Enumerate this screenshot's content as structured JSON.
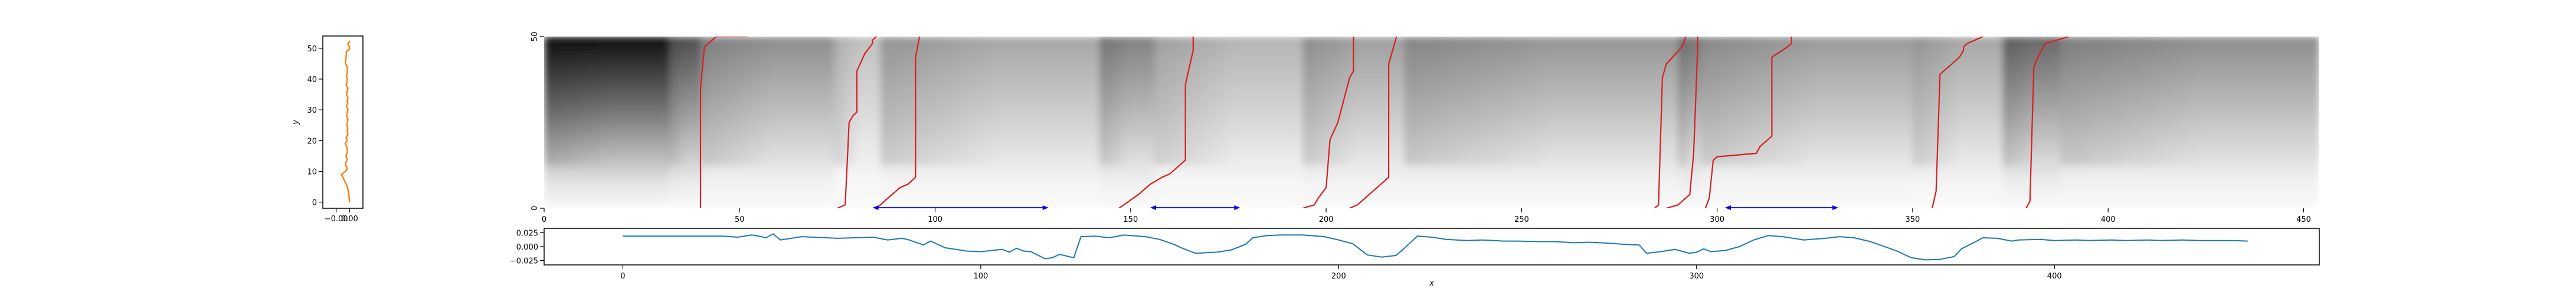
{
  "chart_data": [
    {
      "type": "line",
      "panel": "left-profile",
      "xlabel": "",
      "ylabel": "y",
      "xlim": [
        -0.01,
        0.005
      ],
      "ylim": [
        -2,
        54
      ],
      "xticks": [
        -0.005,
        0.0
      ],
      "xtick_labels": [
        "−0.00",
        "0.00"
      ],
      "yticks": [
        0,
        10,
        20,
        30,
        40,
        50
      ],
      "series": [
        {
          "color": "#ff7f0e",
          "x": [
            0.0,
            -0.0002,
            -0.0008,
            -0.003,
            -0.0015,
            -0.0008,
            -0.0015,
            -0.0013,
            -0.0009,
            -0.0014,
            -0.0009,
            -0.0008,
            -0.0011,
            -0.0016,
            -0.0009,
            -0.0013,
            -0.0006,
            -0.0009,
            -0.0007,
            -0.001,
            -0.0008,
            -0.0006,
            -0.0011,
            -0.0009,
            -0.0006,
            -0.0012,
            -0.0007,
            -0.0009,
            -0.0006,
            -0.0011,
            -0.0009,
            -0.0006,
            -0.0013,
            -0.001,
            -0.0009,
            -0.0012,
            -0.0008,
            -0.0009,
            -0.0009,
            -0.0015,
            -0.0015,
            -0.0013,
            -0.0012,
            -0.0012,
            -0.0003,
            0.0,
            0.0,
            -0.0005,
            -0.0006,
            -0.0001,
            0.0
          ],
          "y": [
            0,
            2,
            5,
            9,
            10,
            11,
            12,
            13,
            14,
            15,
            16,
            17,
            18,
            19,
            20,
            21,
            22,
            23,
            24,
            25,
            26,
            27,
            28,
            29,
            30,
            31,
            32,
            33,
            34,
            35,
            36,
            37,
            38,
            39,
            40,
            41,
            42,
            43,
            44,
            45,
            46,
            47,
            48,
            49,
            49.5,
            50,
            50.5,
            51,
            51.5,
            52,
            52.5
          ]
        }
      ]
    },
    {
      "type": "heatmap",
      "panel": "main-heatmap",
      "colormap": "gray_r",
      "xlim": [
        0,
        454
      ],
      "ylim": [
        0,
        50
      ],
      "xticks": [
        0,
        50,
        100,
        150,
        200,
        250,
        300,
        350,
        400,
        450
      ],
      "yticks": [
        0,
        50
      ],
      "blocks": [
        {
          "x0": 0,
          "x1": 32,
          "peak": 0.95
        },
        {
          "x0": 32,
          "x1": 40,
          "peak": 0.7
        },
        {
          "x0": 40,
          "x1": 74,
          "peak": 0.45
        },
        {
          "x0": 74,
          "x1": 86,
          "peak": 0.25
        },
        {
          "x0": 86,
          "x1": 142,
          "peak": 0.35
        },
        {
          "x0": 142,
          "x1": 156,
          "peak": 0.5
        },
        {
          "x0": 156,
          "x1": 194,
          "peak": 0.3
        },
        {
          "x0": 194,
          "x1": 220,
          "peak": 0.38
        },
        {
          "x0": 220,
          "x1": 290,
          "peak": 0.42
        },
        {
          "x0": 290,
          "x1": 296,
          "peak": 0.55
        },
        {
          "x0": 296,
          "x1": 350,
          "peak": 0.4
        },
        {
          "x0": 350,
          "x1": 373,
          "peak": 0.35
        },
        {
          "x0": 373,
          "x1": 388,
          "peak": 0.6
        },
        {
          "x0": 388,
          "x1": 454,
          "peak": 0.45
        }
      ],
      "red_paths": [
        {
          "x": [
            40,
            40,
            41,
            44,
            52
          ],
          "y": [
            0,
            35,
            47,
            50,
            50
          ]
        },
        {
          "x": [
            75,
            77,
            78,
            79,
            80,
            80,
            82,
            84,
            84,
            85
          ],
          "y": [
            0,
            1,
            25,
            27,
            28,
            40,
            45,
            48,
            49,
            50
          ]
        },
        {
          "x": [
            85,
            88,
            90,
            91,
            93,
            94,
            95,
            95,
            95,
            96
          ],
          "y": [
            0,
            3,
            5,
            6,
            7,
            8,
            9,
            20,
            44,
            50
          ]
        },
        {
          "x": [
            147,
            152,
            155,
            158,
            160,
            162,
            164,
            164,
            166,
            166
          ],
          "y": [
            0,
            4,
            7,
            9,
            10,
            12,
            14,
            36,
            46,
            50
          ]
        },
        {
          "x": [
            194,
            197,
            198,
            200,
            201,
            203,
            206,
            207,
            207
          ],
          "y": [
            0,
            1,
            3,
            6,
            20,
            25,
            38,
            40,
            50
          ]
        },
        {
          "x": [
            206,
            208,
            213,
            216,
            216,
            217,
            218
          ],
          "y": [
            0,
            1,
            6,
            9,
            42,
            46,
            50
          ]
        },
        {
          "x": [
            284,
            285,
            286,
            287,
            291,
            292
          ],
          "y": [
            0,
            1,
            38,
            42,
            47,
            50
          ]
        },
        {
          "x": [
            287,
            290,
            293,
            294,
            295,
            295
          ],
          "y": [
            0,
            1,
            4,
            16,
            46,
            50
          ]
        },
        {
          "x": [
            297,
            298,
            299,
            300,
            310,
            311,
            314,
            314,
            318,
            319,
            319
          ],
          "y": [
            0,
            3,
            14,
            15,
            16,
            18,
            21,
            44,
            47,
            48,
            50
          ]
        },
        {
          "x": [
            355,
            356,
            357,
            362,
            363,
            363,
            364,
            368
          ],
          "y": [
            0,
            5,
            39,
            44,
            46,
            47,
            48,
            50
          ]
        },
        {
          "x": [
            379,
            380,
            381,
            382,
            383,
            384,
            390
          ],
          "y": [
            0,
            2,
            41,
            44,
            46,
            48,
            50
          ]
        }
      ],
      "blue_spans": [
        {
          "x0": 84,
          "x1": 129
        },
        {
          "x0": 155,
          "x1": 178
        },
        {
          "x0": 302,
          "x1": 331
        }
      ]
    },
    {
      "type": "line",
      "panel": "bottom-signal",
      "xlabel": "x",
      "ylabel": "",
      "xlim": [
        -22,
        474
      ],
      "ylim": [
        -0.033,
        0.033
      ],
      "xticks": [
        0,
        100,
        200,
        300,
        400
      ],
      "yticks": [
        0.025,
        0.0,
        -0.025
      ],
      "ytick_labels": [
        "0.025",
        "0.000",
        "−0.025"
      ],
      "series": [
        {
          "color": "#1f77b4",
          "x": [
            0,
            10,
            20,
            28,
            32,
            36,
            38,
            40,
            42,
            44,
            50,
            60,
            70,
            74,
            78,
            80,
            84,
            86,
            90,
            96,
            100,
            106,
            108,
            110,
            112,
            114,
            118,
            120,
            122,
            126,
            128,
            132,
            136,
            140,
            146,
            150,
            154,
            156,
            160,
            166,
            170,
            174,
            176,
            180,
            184,
            190,
            196,
            200,
            204,
            208,
            212,
            216,
            218,
            222,
            226,
            230,
            236,
            240,
            246,
            250,
            256,
            260,
            266,
            270,
            276,
            280,
            284,
            286,
            290,
            294,
            298,
            300,
            302,
            304,
            308,
            312,
            316,
            320,
            324,
            330,
            336,
            340,
            344,
            348,
            350,
            356,
            360,
            364,
            368,
            372,
            374,
            378,
            380,
            384,
            388,
            390,
            396,
            400,
            406,
            410,
            416,
            420,
            426,
            430,
            436,
            440,
            446,
            450,
            454
          ],
          "y": [
            0.019,
            0.019,
            0.019,
            0.019,
            0.017,
            0.021,
            0.019,
            0.016,
            0.023,
            0.012,
            0.018,
            0.015,
            0.017,
            0.012,
            0.015,
            0.012,
            0.003,
            0.01,
            -0.002,
            -0.008,
            -0.009,
            -0.005,
            -0.01,
            -0.003,
            -0.008,
            -0.009,
            -0.022,
            -0.02,
            -0.014,
            -0.02,
            0.018,
            0.019,
            0.016,
            0.021,
            0.018,
            0.013,
            0.004,
            -0.002,
            -0.012,
            -0.01,
            -0.006,
            0.004,
            0.016,
            0.02,
            0.021,
            0.021,
            0.018,
            0.012,
            0.005,
            -0.015,
            -0.019,
            -0.016,
            -0.005,
            0.019,
            0.017,
            0.013,
            0.011,
            0.012,
            0.01,
            0.01,
            0.009,
            0.009,
            0.007,
            0.008,
            0.006,
            0.004,
            0.003,
            -0.012,
            -0.009,
            -0.005,
            -0.012,
            -0.01,
            -0.004,
            -0.009,
            -0.007,
            0.0,
            0.012,
            0.02,
            0.018,
            0.012,
            0.015,
            0.018,
            0.016,
            0.01,
            0.006,
            -0.008,
            -0.02,
            -0.024,
            -0.023,
            -0.018,
            -0.004,
            0.009,
            0.016,
            0.015,
            0.01,
            0.012,
            0.013,
            0.011,
            0.012,
            0.011,
            0.012,
            0.011,
            0.012,
            0.011,
            0.012,
            0.011,
            0.011,
            0.011,
            0.01
          ]
        }
      ]
    }
  ]
}
